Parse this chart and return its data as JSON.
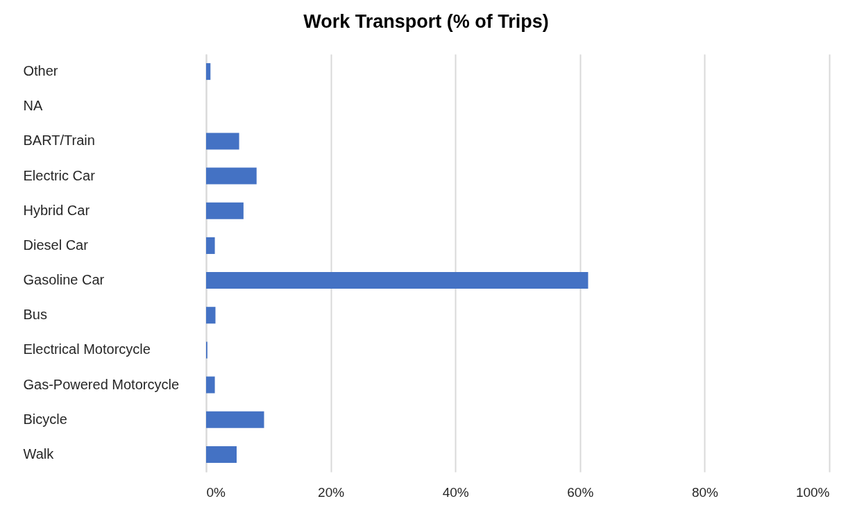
{
  "chart_data": {
    "type": "bar",
    "title": "Work Transport (% of Trips)",
    "orientation": "horizontal",
    "categories": [
      "Other",
      "NA",
      "BART/Train",
      "Electric Car",
      "Hybrid Car",
      "Diesel Car",
      "Gasoline Car",
      "Bus",
      "Electrical Motorcycle",
      "Gas-Powered Motorcycle",
      "Bicycle",
      "Walk"
    ],
    "values": [
      0.7,
      0,
      5.3,
      8.1,
      6.0,
      1.4,
      61.3,
      1.5,
      0.2,
      1.4,
      9.3,
      4.9
    ],
    "color": "#4472c4",
    "xlim": [
      0,
      100
    ],
    "xticks": [
      {
        "value": 0,
        "label": "0%"
      },
      {
        "value": 20,
        "label": "20%"
      },
      {
        "value": 40,
        "label": "40%"
      },
      {
        "value": 60,
        "label": "60%"
      },
      {
        "value": 80,
        "label": "80%"
      },
      {
        "value": 100,
        "label": "100%"
      }
    ],
    "grid": "x"
  }
}
